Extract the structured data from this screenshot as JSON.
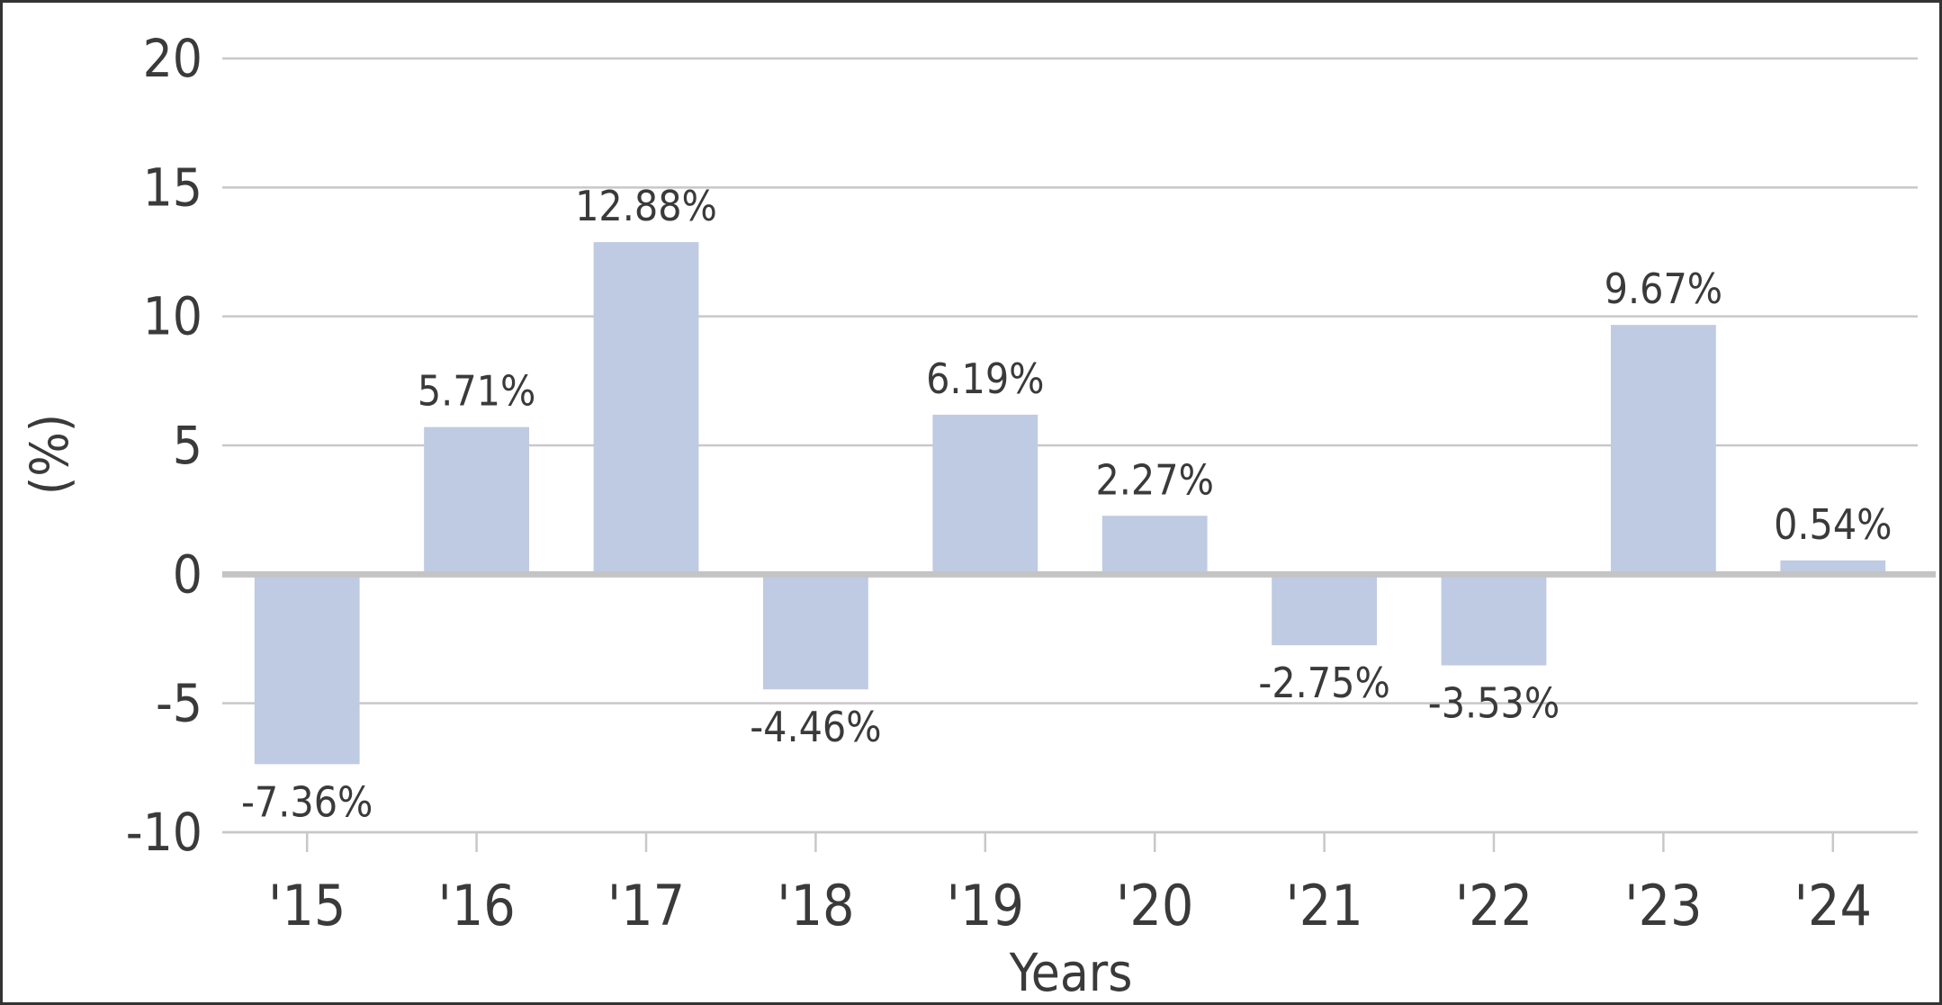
{
  "chart_data": {
    "type": "bar",
    "title": "",
    "xlabel": "Years",
    "ylabel": "(%)",
    "categories": [
      "'15",
      "'16",
      "'17",
      "'18",
      "'19",
      "'20",
      "'21",
      "'22",
      "'23",
      "'24"
    ],
    "values": [
      -7.36,
      5.71,
      12.88,
      -4.46,
      6.19,
      2.27,
      -2.75,
      -3.53,
      9.67,
      0.54
    ],
    "value_labels": [
      "-7.36%",
      "5.71%",
      "12.88%",
      "-4.46%",
      "6.19%",
      "2.27%",
      "-2.75%",
      "-3.53%",
      "9.67%",
      "0.54%"
    ],
    "ylim": [
      -10,
      20
    ],
    "yticks": [
      20,
      15,
      10,
      5,
      0,
      -5,
      -10
    ],
    "grid": true,
    "legend": "none",
    "colors": {
      "bar": "#bfcbe3",
      "grid": "#c8c8c8",
      "zero_line": "#c4c4c4",
      "text": "#3a3a3a",
      "border": "#333333"
    }
  }
}
